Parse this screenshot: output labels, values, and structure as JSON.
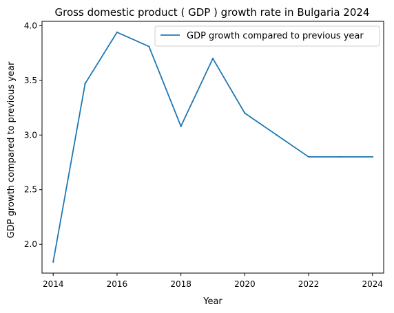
{
  "chart_data": {
    "type": "line",
    "title": "Gross domestic product ( GDP ) growth rate in Bulgaria 2024",
    "xlabel": "Year",
    "ylabel": "GDP growth compared to previous year",
    "xlim": [
      2013.65,
      2024.35
    ],
    "ylim": [
      1.737,
      4.04
    ],
    "x_ticks": [
      2014,
      2016,
      2018,
      2020,
      2022,
      2024
    ],
    "y_ticks": [
      2.0,
      2.5,
      3.0,
      3.5,
      4.0
    ],
    "x_tick_labels": [
      "2014",
      "2016",
      "2018",
      "2020",
      "2022",
      "2024"
    ],
    "y_tick_labels": [
      "2.0",
      "2.5",
      "3.0",
      "3.5",
      "4.0"
    ],
    "grid": false,
    "legend_position": "top-right",
    "series": [
      {
        "name": "GDP growth compared to previous year",
        "color": "#1f77b4",
        "x": [
          2014,
          2015,
          2016,
          2017,
          2018,
          2019,
          2020,
          2021,
          2022,
          2023,
          2024
        ],
        "y": [
          1.84,
          3.47,
          3.94,
          3.81,
          3.08,
          3.7,
          3.2,
          3.0,
          2.8,
          2.8,
          2.8
        ]
      }
    ]
  }
}
